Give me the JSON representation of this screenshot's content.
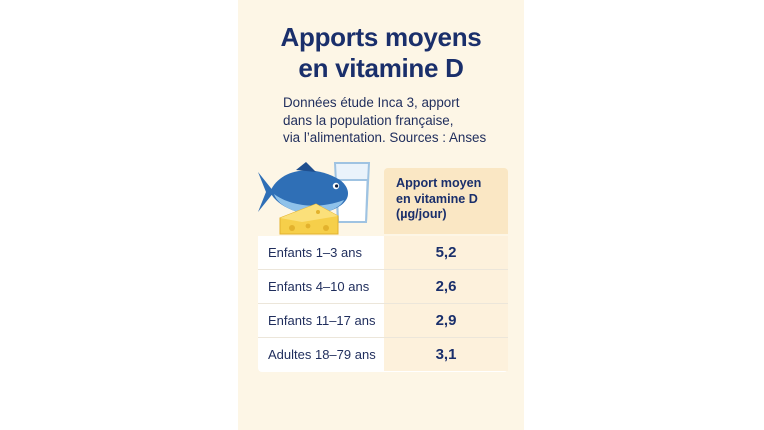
{
  "title": {
    "line1": "Apports moyens",
    "line2": "en vitamine D"
  },
  "subtitle": {
    "line1": "Données étude Inca 3, apport",
    "line2": "dans la population française,",
    "line3": "via l’alimentation. Sources : Anses"
  },
  "illustration": {
    "icons": [
      "fish-icon",
      "milk-glass-icon",
      "cheese-icon"
    ]
  },
  "table": {
    "column_header": {
      "line1": "Apport moyen",
      "line2": "en vitamine D",
      "line3": "(µg/jour)"
    },
    "rows": [
      {
        "label": "Enfants 1–3 ans",
        "value": "5,2"
      },
      {
        "label": "Enfants 4–10 ans",
        "value": "2,6"
      },
      {
        "label": "Enfants 11–17 ans",
        "value": "2,9"
      },
      {
        "label": "Adultes 18–79 ans",
        "value": "3,1"
      }
    ]
  },
  "colors": {
    "background": "#fdf6e6",
    "title": "#1a2f6b",
    "header_fill": "#fae7c4",
    "fish": "#2f6fb6",
    "cheese": "#f6cf4a"
  }
}
